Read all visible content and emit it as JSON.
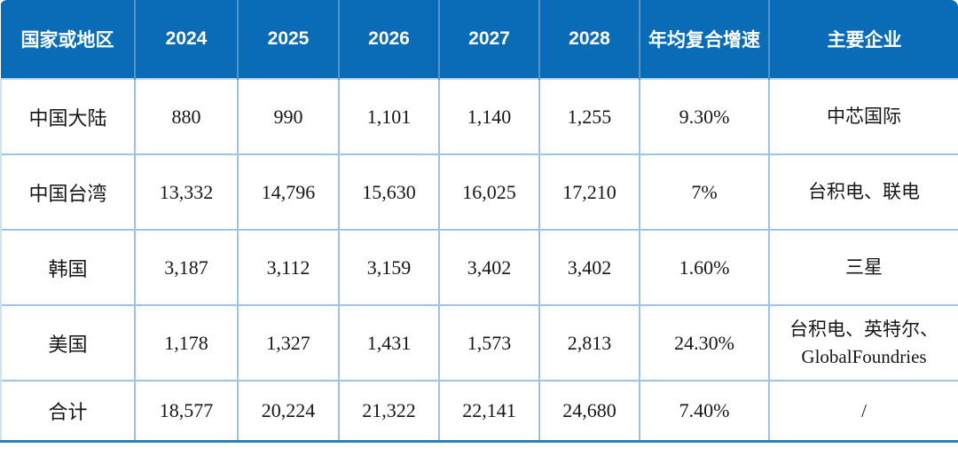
{
  "table": {
    "columns": [
      "国家或地区",
      "2024",
      "2025",
      "2026",
      "2027",
      "2028",
      "年均复合增速",
      "主要企业"
    ],
    "rows": [
      [
        "中国大陆",
        "880",
        "990",
        "1,101",
        "1,140",
        "1,255",
        "9.30%",
        "中芯国际"
      ],
      [
        "中国台湾",
        "13,332",
        "14,796",
        "15,630",
        "16,025",
        "17,210",
        "7%",
        "台积电、联电"
      ],
      [
        "韩国",
        "3,187",
        "3,112",
        "3,159",
        "3,402",
        "3,402",
        "1.60%",
        "三星"
      ],
      [
        "美国",
        "1,178",
        "1,327",
        "1,431",
        "1,573",
        "2,813",
        "24.30%",
        "台积电、英特尔、GlobalFoundries"
      ],
      [
        "合计",
        "18,577",
        "20,224",
        "21,322",
        "22,141",
        "24,680",
        "7.40%",
        "/"
      ]
    ],
    "colors": {
      "header_bg": "#0a6cb7",
      "header_text": "#ffffff",
      "grid_line": "#9dc3e6",
      "header_divider": "#4e96cc",
      "bottom_rule": "#2e81b8",
      "body_text": "#161616"
    }
  }
}
